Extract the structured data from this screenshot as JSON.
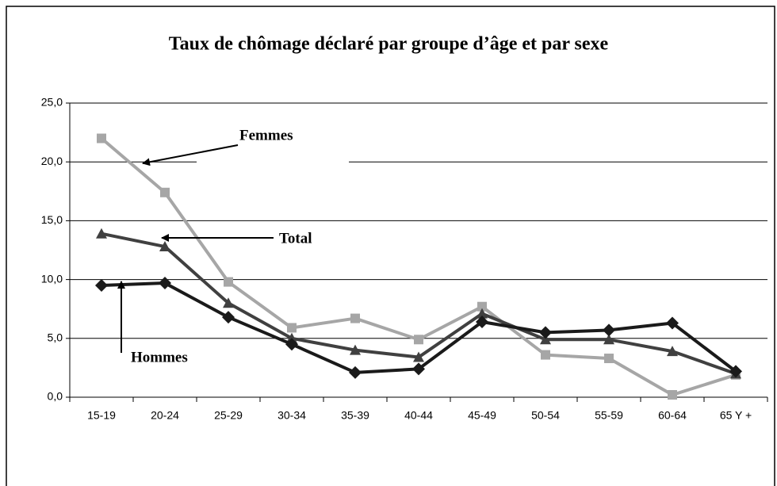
{
  "chart_data": {
    "type": "line",
    "title": "Taux de chômage déclaré par groupe d’âge et par sexe",
    "categories": [
      "15-19",
      "20-24",
      "25-29",
      "30-34",
      "35-39",
      "40-44",
      "45-49",
      "50-54",
      "55-59",
      "60-64",
      "65 Y +"
    ],
    "series": [
      {
        "name": "Femmes",
        "color": "#a6a6a6",
        "marker": "square",
        "values": [
          22.0,
          17.4,
          9.8,
          5.9,
          6.7,
          4.9,
          7.7,
          3.6,
          3.3,
          0.2,
          1.9
        ]
      },
      {
        "name": "Total",
        "color": "#404040",
        "marker": "triangle",
        "values": [
          13.9,
          12.8,
          8.0,
          5.0,
          4.0,
          3.4,
          7.1,
          4.9,
          4.9,
          3.9,
          2.0
        ]
      },
      {
        "name": "Hommes",
        "color": "#1a1a1a",
        "marker": "diamond",
        "values": [
          9.5,
          9.7,
          6.8,
          4.5,
          2.1,
          2.4,
          6.4,
          5.5,
          5.7,
          6.3,
          2.2
        ]
      }
    ],
    "ylim": [
      0,
      25
    ],
    "yticks": [
      {
        "value": 0,
        "label": "0,0"
      },
      {
        "value": 5,
        "label": "5,0"
      },
      {
        "value": 10,
        "label": "10,0"
      },
      {
        "value": 15,
        "label": "15,0"
      },
      {
        "value": 20,
        "label": "20,0"
      },
      {
        "value": 25,
        "label": "25,0"
      }
    ],
    "grid": true
  }
}
